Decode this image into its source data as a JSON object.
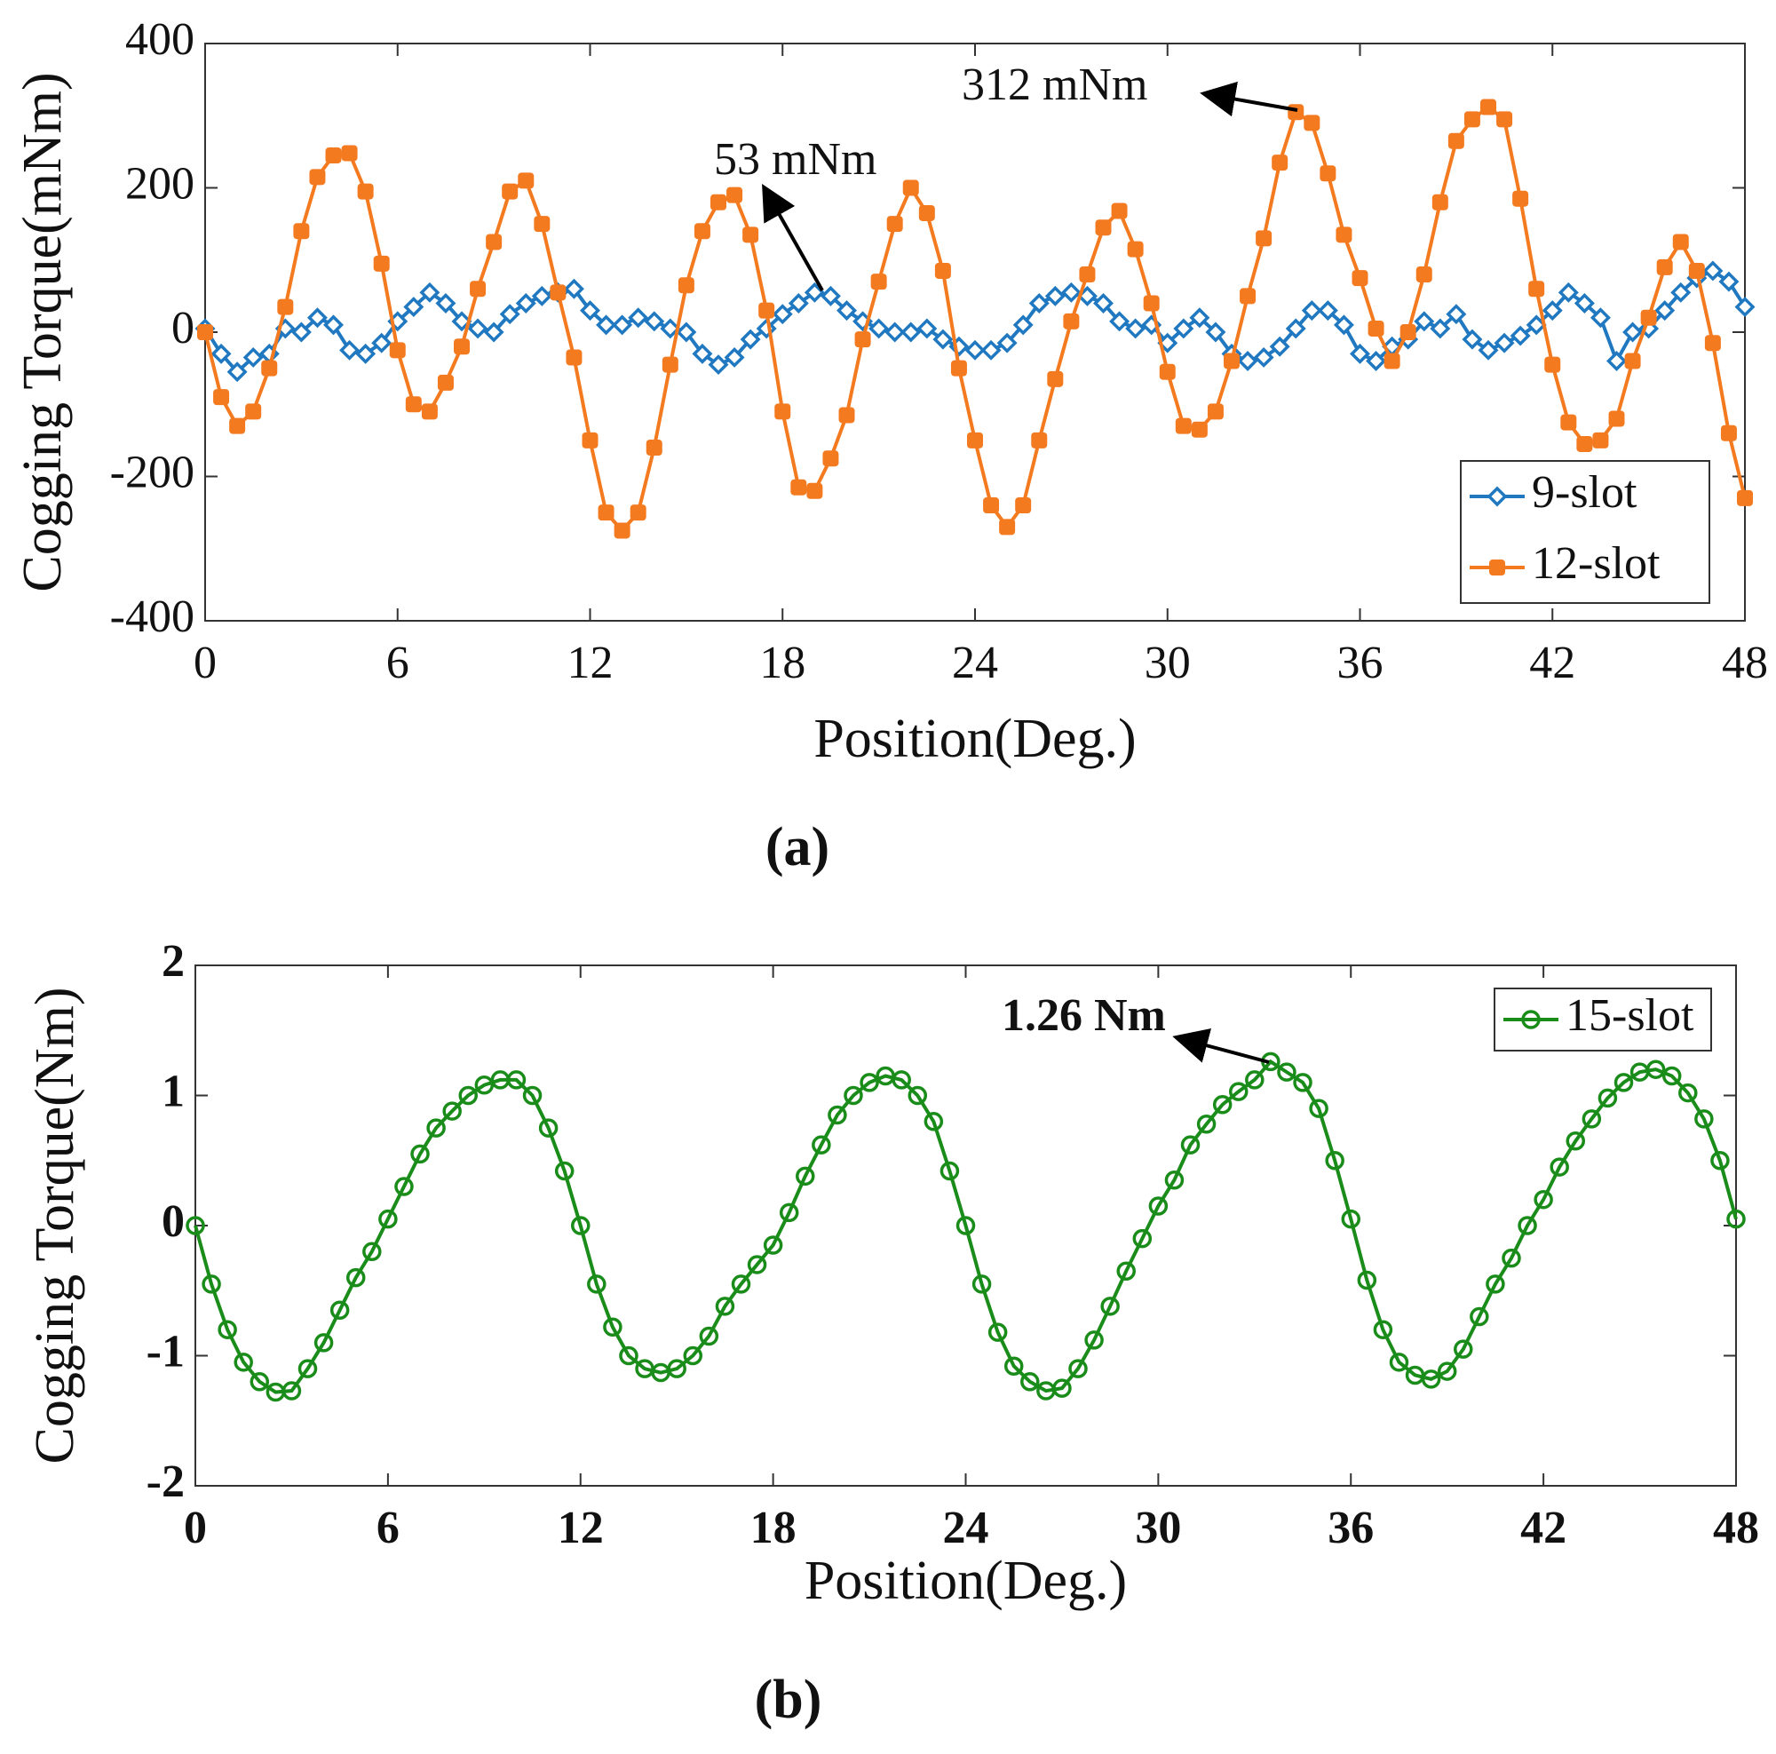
{
  "chart_data": [
    {
      "type": "line",
      "caption": "(a)",
      "xlabel": "Position(Deg.)",
      "ylabel": "Cogging Torque(mNm)",
      "xlim": [
        0,
        48
      ],
      "xticks": [
        0,
        6,
        12,
        18,
        24,
        30,
        36,
        42,
        48
      ],
      "ylim": [
        -400,
        400
      ],
      "yticks": [
        -400,
        -200,
        0,
        200,
        400
      ],
      "legend": "lower right",
      "annotations": [
        {
          "text": "312 mNm"
        },
        {
          "text": "53 mNm"
        }
      ],
      "x": [
        0,
        0.5,
        1,
        1.5,
        2,
        2.5,
        3,
        3.5,
        4,
        4.5,
        5,
        5.5,
        6,
        6.5,
        7,
        7.5,
        8,
        8.5,
        9,
        9.5,
        10,
        10.5,
        11,
        11.5,
        12,
        12.5,
        13,
        13.5,
        14,
        14.5,
        15,
        15.5,
        16,
        16.5,
        17,
        17.5,
        18,
        18.5,
        19,
        19.5,
        20,
        20.5,
        21,
        21.5,
        22,
        22.5,
        23,
        23.5,
        24,
        24.5,
        25,
        25.5,
        26,
        26.5,
        27,
        27.5,
        28,
        28.5,
        29,
        29.5,
        30,
        30.5,
        31,
        31.5,
        32,
        32.5,
        33,
        33.5,
        34,
        34.5,
        35,
        35.5,
        36,
        36.5,
        37,
        37.5,
        38,
        38.5,
        39,
        39.5,
        40,
        40.5,
        41,
        41.5,
        42,
        42.5,
        43,
        43.5,
        44,
        44.5,
        45,
        45.5,
        46,
        46.5,
        47,
        47.5,
        48
      ],
      "series": [
        {
          "name": "9-slot",
          "color": "#1f78c0",
          "marker": "diamond",
          "values": [
            5,
            -30,
            -55,
            -35,
            -30,
            5,
            0,
            20,
            10,
            -25,
            -30,
            -15,
            15,
            35,
            55,
            40,
            15,
            5,
            0,
            25,
            40,
            50,
            55,
            60,
            30,
            10,
            10,
            20,
            15,
            5,
            0,
            -30,
            -45,
            -35,
            -10,
            5,
            25,
            40,
            55,
            50,
            30,
            15,
            5,
            0,
            0,
            5,
            -10,
            -20,
            -25,
            -25,
            -15,
            10,
            40,
            50,
            55,
            50,
            40,
            15,
            5,
            10,
            -15,
            5,
            20,
            0,
            -30,
            -40,
            -35,
            -20,
            5,
            30,
            30,
            10,
            -30,
            -40,
            -20,
            -10,
            15,
            5,
            25,
            -10,
            -25,
            -15,
            -5,
            10,
            30,
            55,
            40,
            20,
            -40,
            0,
            5,
            30,
            55,
            75,
            85,
            70,
            35
          ]
        },
        {
          "name": "12-slot",
          "color": "#f47a20",
          "marker": "square",
          "values": [
            0,
            -90,
            -130,
            -110,
            -50,
            35,
            140,
            215,
            245,
            248,
            195,
            95,
            -25,
            -100,
            -110,
            -70,
            -20,
            60,
            125,
            195,
            210,
            150,
            55,
            -35,
            -150,
            -250,
            -275,
            -250,
            -160,
            -45,
            65,
            140,
            180,
            190,
            135,
            30,
            -110,
            -215,
            -220,
            -175,
            -115,
            -10,
            70,
            150,
            200,
            165,
            85,
            -50,
            -150,
            -240,
            -270,
            -240,
            -150,
            -65,
            15,
            80,
            145,
            168,
            115,
            40,
            -55,
            -130,
            -135,
            -110,
            -40,
            50,
            130,
            235,
            305,
            290,
            220,
            135,
            75,
            5,
            -40,
            0,
            80,
            180,
            265,
            295,
            312,
            295,
            185,
            60,
            -45,
            -125,
            -155,
            -150,
            -120,
            -40,
            20,
            90,
            125,
            85,
            -15,
            -140,
            -230
          ]
        }
      ]
    },
    {
      "type": "line",
      "caption": "(b)",
      "xlabel": "Position(Deg.)",
      "ylabel": "Cogging Torque(Nm)",
      "xlim": [
        0,
        48
      ],
      "xticks": [
        0,
        6,
        12,
        18,
        24,
        30,
        36,
        42,
        48
      ],
      "ylim": [
        -2,
        2
      ],
      "yticks": [
        -2,
        -1,
        0,
        1,
        2
      ],
      "legend": "upper right",
      "annotations": [
        {
          "text": "1.26 Nm"
        }
      ],
      "x": [
        0,
        0.5,
        1,
        1.5,
        2,
        2.5,
        3,
        3.5,
        4,
        4.5,
        5,
        5.5,
        6,
        6.5,
        7,
        7.5,
        8,
        8.5,
        9,
        9.5,
        10,
        10.5,
        11,
        11.5,
        12,
        12.5,
        13,
        13.5,
        14,
        14.5,
        15,
        15.5,
        16,
        16.5,
        17,
        17.5,
        18,
        18.5,
        19,
        19.5,
        20,
        20.5,
        21,
        21.5,
        22,
        22.5,
        23,
        23.5,
        24,
        24.5,
        25,
        25.5,
        26,
        26.5,
        27,
        27.5,
        28,
        28.5,
        29,
        29.5,
        30,
        30.5,
        31,
        31.5,
        32,
        32.5,
        33,
        33.5,
        34,
        34.5,
        35,
        35.5,
        36,
        36.5,
        37,
        37.5,
        38,
        38.5,
        39,
        39.5,
        40,
        40.5,
        41,
        41.5,
        42,
        42.5,
        43,
        43.5,
        44,
        44.5,
        45,
        45.5,
        46,
        46.5,
        47,
        47.5,
        48
      ],
      "series": [
        {
          "name": "15-slot",
          "color": "#1a8c1a",
          "marker": "circle",
          "values": [
            0,
            -0.45,
            -0.8,
            -1.05,
            -1.2,
            -1.28,
            -1.27,
            -1.1,
            -0.9,
            -0.65,
            -0.4,
            -0.2,
            0.05,
            0.3,
            0.55,
            0.75,
            0.88,
            1.0,
            1.08,
            1.12,
            1.12,
            1.0,
            0.75,
            0.42,
            0.0,
            -0.45,
            -0.78,
            -1.0,
            -1.1,
            -1.13,
            -1.1,
            -1.0,
            -0.85,
            -0.62,
            -0.45,
            -0.3,
            -0.15,
            0.1,
            0.38,
            0.62,
            0.85,
            1.0,
            1.1,
            1.15,
            1.12,
            1.0,
            0.8,
            0.42,
            0.0,
            -0.45,
            -0.82,
            -1.08,
            -1.2,
            -1.27,
            -1.25,
            -1.1,
            -0.88,
            -0.62,
            -0.35,
            -0.1,
            0.15,
            0.35,
            0.62,
            0.78,
            0.93,
            1.03,
            1.12,
            1.26,
            1.18,
            1.1,
            0.9,
            0.5,
            0.05,
            -0.42,
            -0.8,
            -1.05,
            -1.15,
            -1.18,
            -1.12,
            -0.95,
            -0.7,
            -0.45,
            -0.25,
            0.0,
            0.2,
            0.45,
            0.65,
            0.82,
            0.98,
            1.1,
            1.18,
            1.2,
            1.15,
            1.02,
            0.82,
            0.5,
            0.05
          ]
        }
      ]
    }
  ]
}
